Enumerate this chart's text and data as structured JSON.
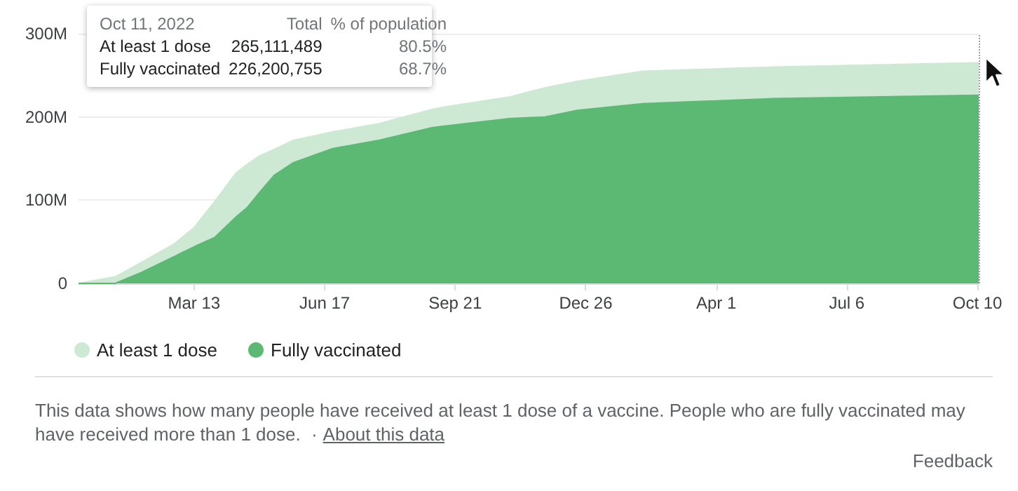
{
  "chart_data": {
    "type": "area",
    "x": [
      "2020-12-18",
      "2021-01-14",
      "2021-02-02",
      "2021-02-26",
      "2021-03-13",
      "2021-03-28",
      "2021-04-13",
      "2021-04-21",
      "2021-04-30",
      "2021-05-11",
      "2021-05-25",
      "2021-06-23",
      "2021-07-27",
      "2021-09-04",
      "2021-09-13",
      "2021-10-31",
      "2021-11-26",
      "2021-12-20",
      "2022-02-06",
      "2022-05-14",
      "2022-10-11"
    ],
    "series": [
      {
        "name": "At least 1 dose",
        "color": "#cde9d3",
        "values": [
          0,
          8,
          25,
          47,
          67,
          98,
          133,
          143,
          153,
          161,
          172,
          182,
          192,
          209,
          212,
          224,
          235,
          243,
          255,
          260,
          265
        ]
      },
      {
        "name": "Fully vaccinated",
        "color": "#5bb974",
        "values": [
          0,
          0,
          13,
          32,
          44,
          55,
          80,
          91,
          109,
          130,
          145,
          162,
          172,
          187,
          189,
          198,
          200,
          208,
          216,
          222,
          226
        ]
      }
    ],
    "xlim": [
      "2020-12-18",
      "2022-10-11"
    ],
    "xticks": [
      {
        "value": "2021-03-13",
        "label": "Mar 13"
      },
      {
        "value": "2021-06-17",
        "label": "Jun 17"
      },
      {
        "value": "2021-09-21",
        "label": "Sep 21"
      },
      {
        "value": "2021-12-26",
        "label": "Dec 26"
      },
      {
        "value": "2022-04-01",
        "label": "Apr 1"
      },
      {
        "value": "2022-07-06",
        "label": "Jul 6"
      },
      {
        "value": "2022-10-10",
        "label": "Oct 10"
      }
    ],
    "ylim": [
      0,
      300
    ],
    "yticks": [
      0,
      {
        "value": 100,
        "label": "100M"
      },
      {
        "value": 200,
        "label": "200M"
      },
      {
        "value": 300,
        "label": "300M"
      }
    ],
    "grid": "y",
    "legend": "bottom left",
    "marker": "none",
    "ref_lines": [
      {
        "axis": "x",
        "value": "2022-10-11",
        "label": null,
        "color": "#9e9e9e",
        "line_style": "dotted"
      }
    ],
    "annotations": [
      "This data shows how many people have received at least 1 dose of a vaccine. People who are fully vaccinated may have received more than 1 dose.",
      "·",
      "About this data",
      "Feedback",
      "Oct 11, 2022",
      "Total",
      "% of population",
      "265,111,489",
      "80.5%",
      "226,200,755",
      "68.7%"
    ]
  }
}
